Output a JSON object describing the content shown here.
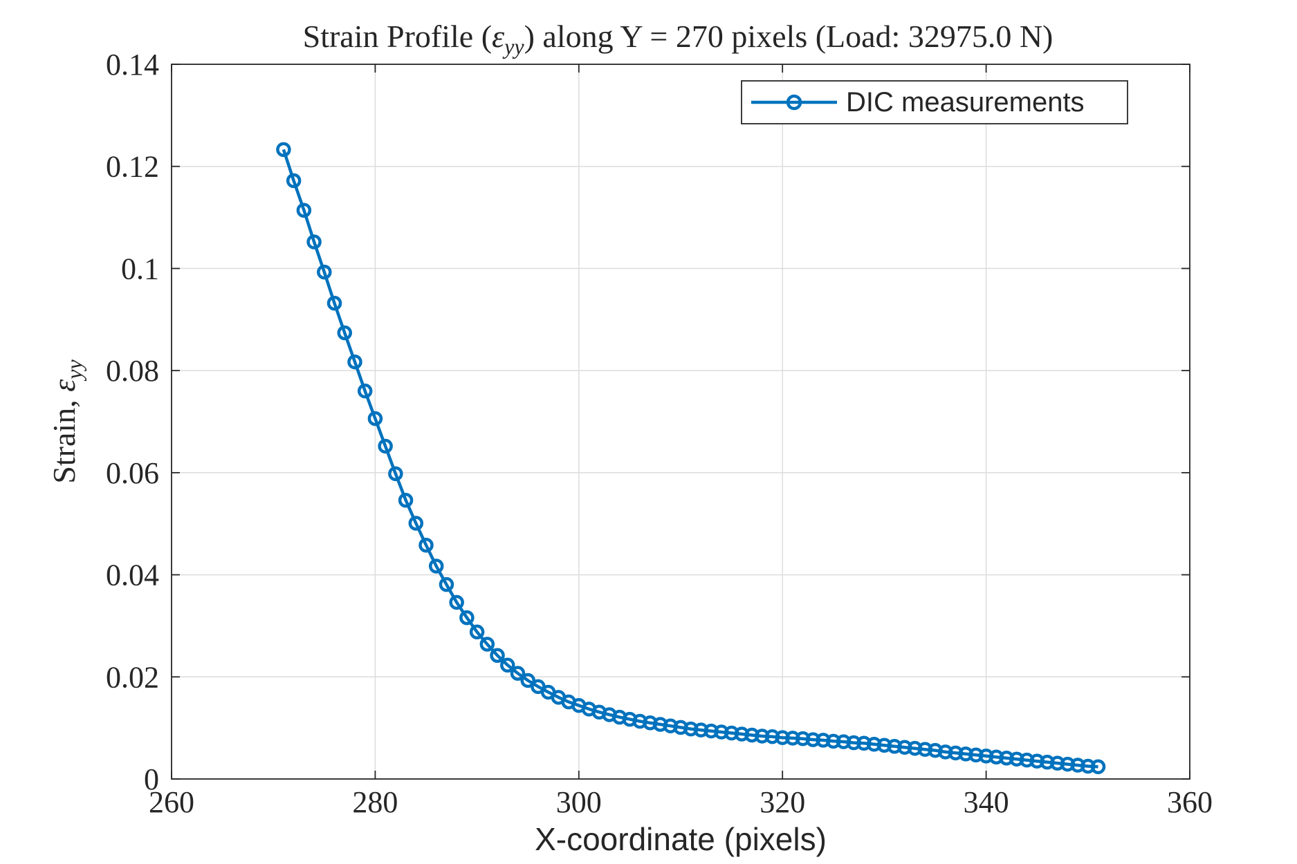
{
  "chart_data": {
    "type": "line",
    "title_prefix": "Strain Profile (",
    "title_symbol": "ε",
    "title_subscript": "yy",
    "title_suffix": ") along Y = 270 pixels (Load: 32975.0 N)",
    "xlabel": "X-coordinate (pixels)",
    "ylabel_prefix": "Strain, ",
    "ylabel_symbol": "ε",
    "ylabel_subscript": "yy",
    "xlim": [
      260,
      360
    ],
    "ylim": [
      0,
      0.14
    ],
    "xticks": [
      260,
      280,
      300,
      320,
      340,
      360
    ],
    "yticks": [
      0,
      0.02,
      0.04,
      0.06,
      0.08,
      0.1,
      0.12,
      0.14
    ],
    "xtick_labels": [
      "260",
      "280",
      "300",
      "320",
      "340",
      "360"
    ],
    "ytick_labels": [
      "0",
      "0.02",
      "0.04",
      "0.06",
      "0.08",
      "0.1",
      "0.12",
      "0.14"
    ],
    "grid": true,
    "legend_position": "top-right",
    "series": [
      {
        "name": "DIC measurements",
        "color": "#0072bd",
        "marker": "circle",
        "x": [
          271,
          272,
          273,
          274,
          275,
          276,
          277,
          278,
          279,
          280,
          281,
          282,
          283,
          284,
          285,
          286,
          287,
          288,
          289,
          290,
          291,
          292,
          293,
          294,
          295,
          296,
          297,
          298,
          299,
          300,
          301,
          302,
          303,
          304,
          305,
          306,
          307,
          308,
          309,
          310,
          311,
          312,
          313,
          314,
          315,
          316,
          317,
          318,
          319,
          320,
          321,
          322,
          323,
          324,
          325,
          326,
          327,
          328,
          329,
          330,
          331,
          332,
          333,
          334,
          335,
          336,
          337,
          338,
          339,
          340,
          341,
          342,
          343,
          344,
          345,
          346,
          347,
          348,
          349,
          350,
          351
        ],
        "values": [
          0.1233,
          0.1172,
          0.1114,
          0.1052,
          0.0993,
          0.0932,
          0.0874,
          0.0817,
          0.076,
          0.0706,
          0.0652,
          0.0598,
          0.0546,
          0.0501,
          0.0458,
          0.0417,
          0.0381,
          0.0346,
          0.0316,
          0.0288,
          0.0264,
          0.0242,
          0.0223,
          0.0207,
          0.0193,
          0.0181,
          0.017,
          0.016,
          0.0151,
          0.0144,
          0.0137,
          0.0131,
          0.0126,
          0.0121,
          0.0117,
          0.0113,
          0.011,
          0.0107,
          0.0104,
          0.0101,
          0.0098,
          0.0096,
          0.0094,
          0.0092,
          0.009,
          0.0088,
          0.0086,
          0.0084,
          0.0083,
          0.0081,
          0.008,
          0.0079,
          0.0077,
          0.0076,
          0.0074,
          0.0073,
          0.0071,
          0.007,
          0.0068,
          0.0066,
          0.0064,
          0.0062,
          0.006,
          0.0058,
          0.0056,
          0.0053,
          0.0051,
          0.0049,
          0.0047,
          0.0045,
          0.0043,
          0.0041,
          0.0039,
          0.0037,
          0.0035,
          0.0033,
          0.0031,
          0.0029,
          0.0027,
          0.0025,
          0.0024
        ]
      }
    ]
  }
}
